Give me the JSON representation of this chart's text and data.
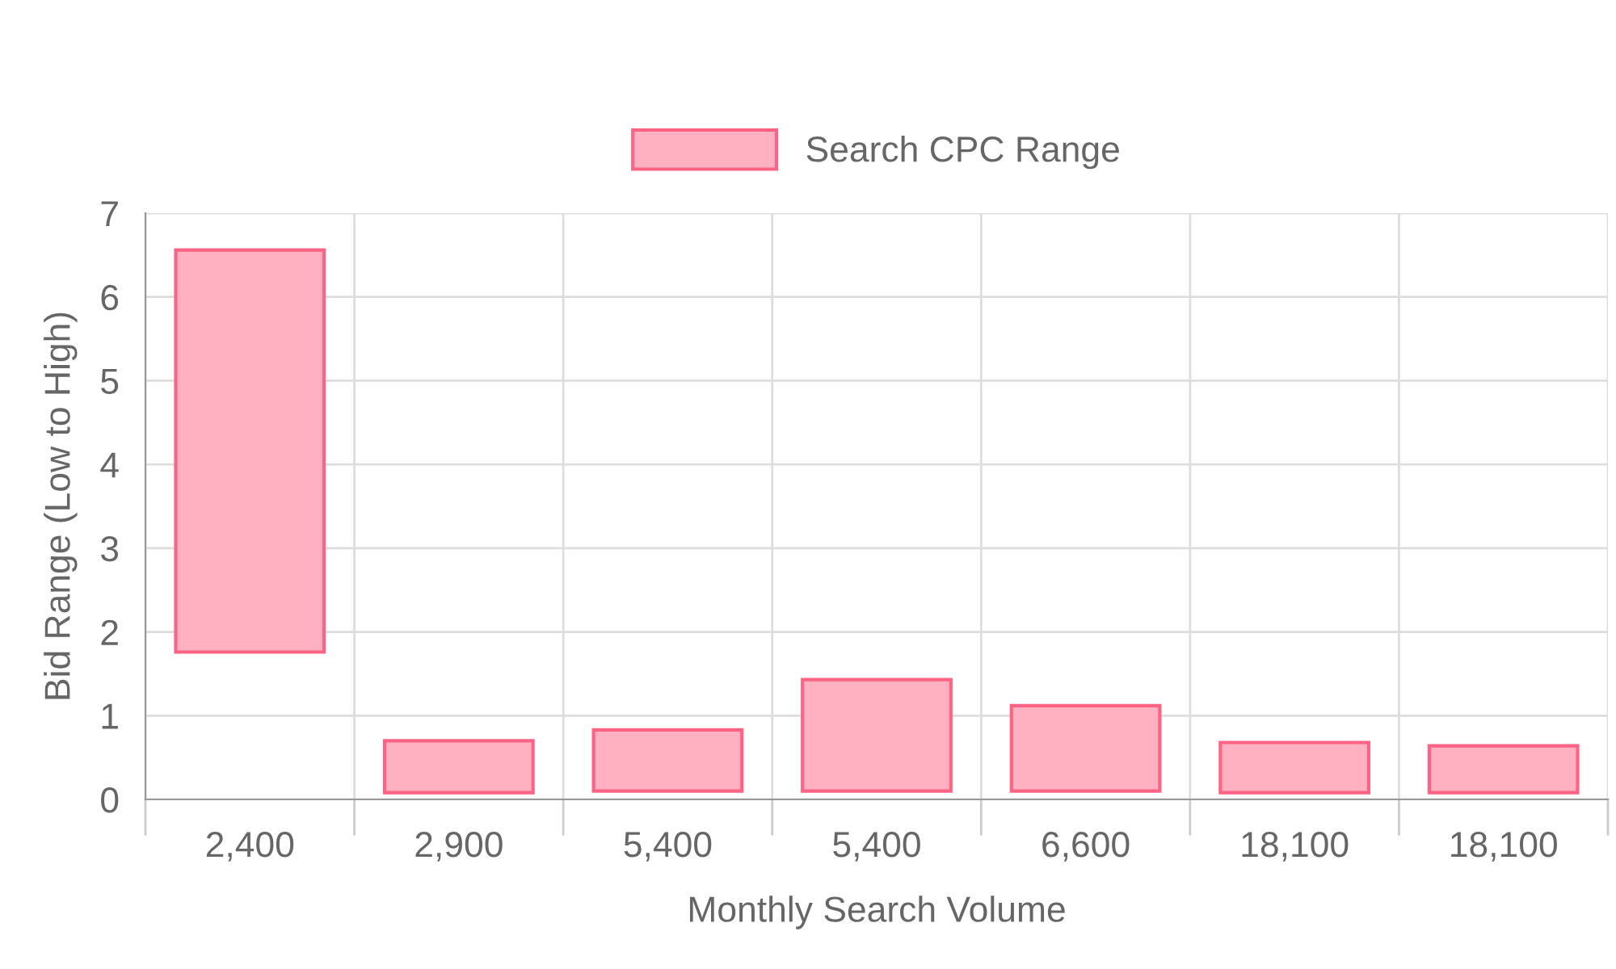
{
  "chart_data": {
    "type": "bar",
    "xlabel": "Monthly Search Volume",
    "ylabel": "Bid Range (Low to High)",
    "categories": [
      "2,400",
      "2,900",
      "5,400",
      "5,400",
      "6,600",
      "18,100",
      "18,100"
    ],
    "series": [
      {
        "name": "Search CPC Range",
        "color": "#ffb1c1",
        "base": [
          1.76,
          0.08,
          0.1,
          0.1,
          0.1,
          0.08,
          0.08
        ],
        "values": [
          4.8,
          0.62,
          0.73,
          1.33,
          1.02,
          0.6,
          0.56
        ]
      }
    ],
    "ylim": [
      0,
      7
    ],
    "yticks": [
      0,
      1,
      2,
      3,
      4,
      5,
      6,
      7
    ],
    "grid": true,
    "legend": "top"
  }
}
